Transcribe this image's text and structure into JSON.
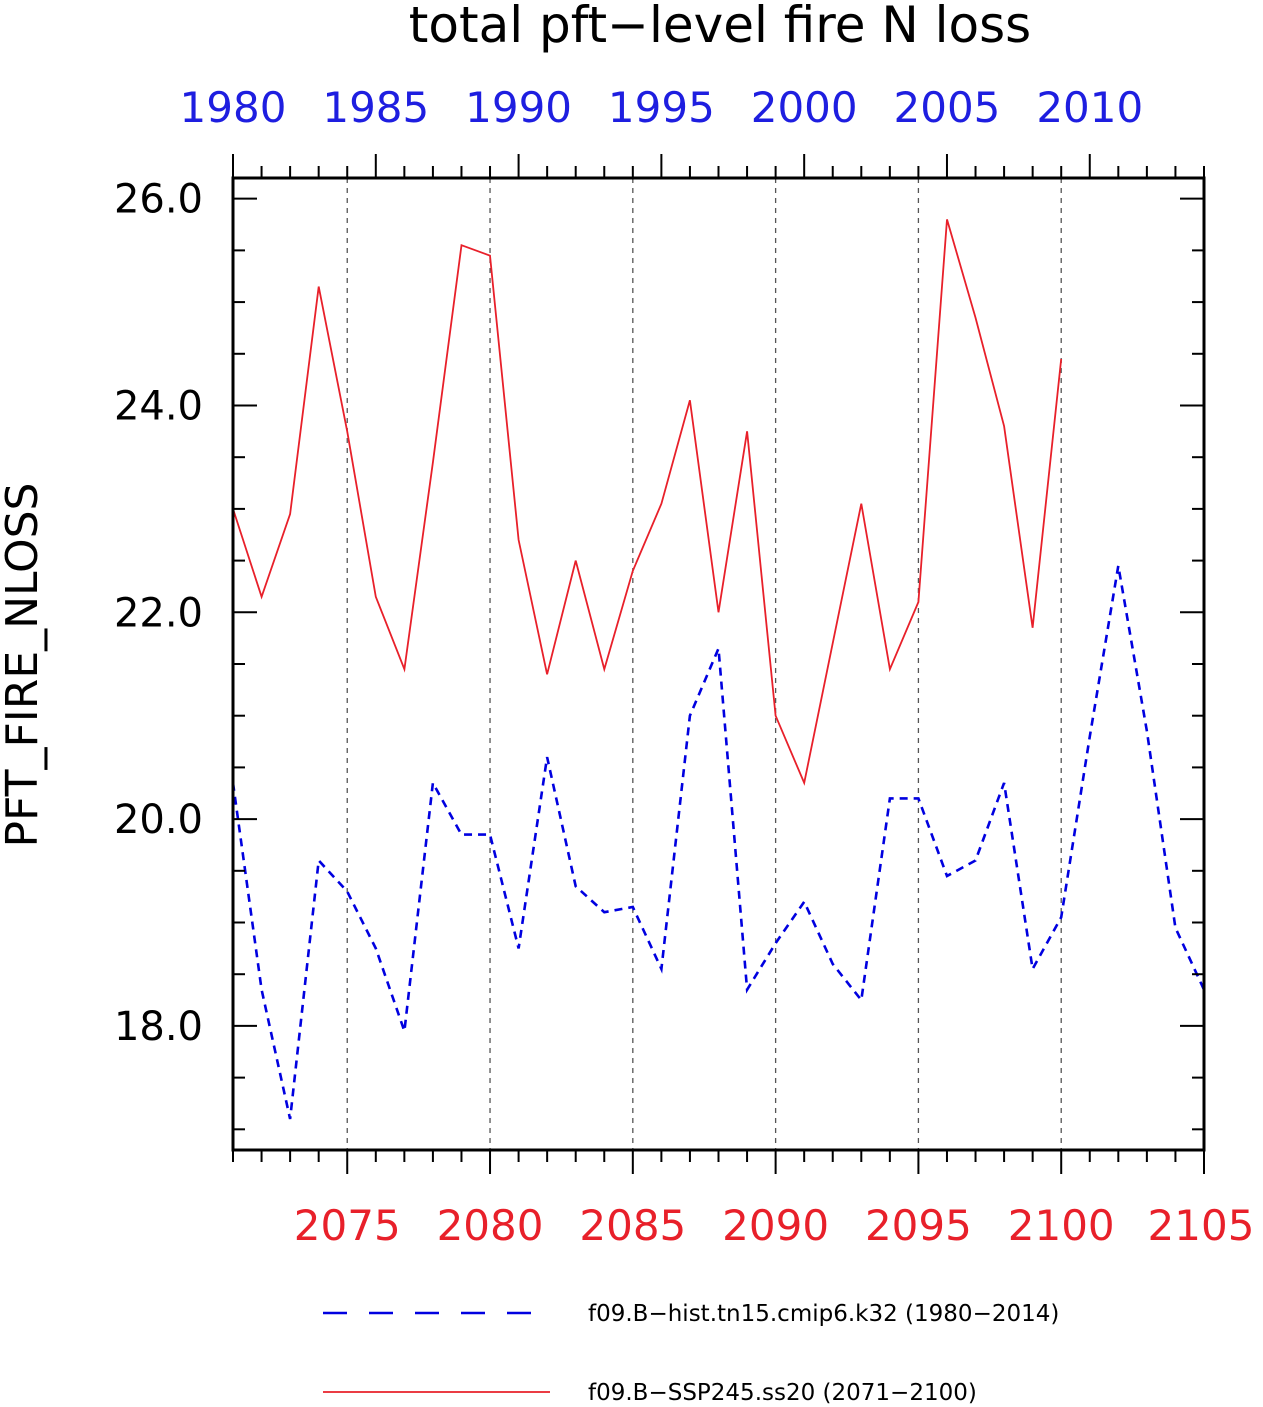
{
  "chart_data": {
    "type": "line",
    "title": "total pft−level fire N loss",
    "ylabel": "PFT_FIRE_NLOSS",
    "ylim": [
      16.8,
      26.2
    ],
    "yticks": [
      18,
      20,
      22,
      24,
      26
    ],
    "ytick_labels": [
      "18.0",
      "20.0",
      "22.0",
      "24.0",
      "26.0"
    ],
    "y_minor_step": 0.5,
    "grid_x": true,
    "legend_position": "bottom",
    "axes": {
      "bottom": {
        "range": [
          2071,
          2105
        ],
        "ticks": [
          2075,
          2080,
          2085,
          2090,
          2095,
          2100,
          2105
        ],
        "labels": [
          "2075",
          "2080",
          "2085",
          "2090",
          "2095",
          "2100",
          "2105"
        ],
        "color": "#e8202a"
      },
      "top": {
        "range": [
          1980,
          2014
        ],
        "ticks": [
          1980,
          1985,
          1990,
          1995,
          2000,
          2005,
          2010
        ],
        "labels": [
          "1980",
          "1985",
          "1990",
          "1995",
          "2000",
          "2005",
          "2010"
        ],
        "color": "#1e1ee0"
      }
    },
    "series": [
      {
        "name": "f09.B−hist.tn15.cmip6.k32 (1980−2014)",
        "axis": "top",
        "color": "#0000e0",
        "dash": true,
        "x": [
          1980,
          1981,
          1982,
          1983,
          1984,
          1985,
          1986,
          1987,
          1988,
          1989,
          1990,
          1991,
          1992,
          1993,
          1994,
          1995,
          1996,
          1997,
          1998,
          1999,
          2000,
          2001,
          2002,
          2003,
          2004,
          2005,
          2006,
          2007,
          2008,
          2009,
          2010,
          2011,
          2012,
          2013,
          2014
        ],
        "values": [
          20.35,
          18.35,
          17.1,
          19.6,
          19.3,
          18.75,
          17.95,
          20.35,
          19.85,
          19.85,
          18.75,
          20.6,
          19.35,
          19.1,
          19.15,
          18.55,
          21.0,
          21.65,
          18.35,
          18.8,
          19.2,
          18.6,
          18.25,
          20.2,
          20.2,
          19.45,
          19.6,
          20.35,
          18.55,
          19.05,
          20.8,
          22.45,
          20.85,
          18.95,
          18.35
        ]
      },
      {
        "name": "f09.B−SSP245.ss20 (2071−2100)",
        "axis": "bottom",
        "color": "#e8202a",
        "dash": false,
        "x": [
          2071,
          2072,
          2073,
          2074,
          2075,
          2076,
          2077,
          2078,
          2079,
          2080,
          2081,
          2082,
          2083,
          2084,
          2085,
          2086,
          2087,
          2088,
          2089,
          2090,
          2091,
          2092,
          2093,
          2094,
          2095,
          2096,
          2097,
          2098,
          2099,
          2100
        ],
        "values": [
          23.0,
          22.15,
          22.95,
          25.15,
          23.75,
          22.15,
          21.45,
          23.45,
          25.55,
          25.45,
          22.7,
          21.4,
          22.5,
          21.45,
          22.4,
          23.05,
          24.05,
          22.0,
          23.75,
          21.0,
          20.35,
          21.7,
          23.05,
          21.45,
          22.1,
          25.8,
          24.85,
          23.8,
          21.85,
          24.45
        ]
      }
    ]
  }
}
